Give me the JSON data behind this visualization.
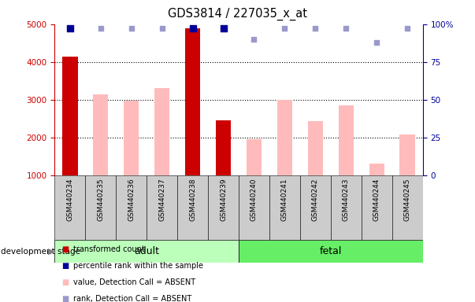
{
  "title": "GDS3814 / 227035_x_at",
  "categories": [
    "GSM440234",
    "GSM440235",
    "GSM440236",
    "GSM440237",
    "GSM440238",
    "GSM440239",
    "GSM440240",
    "GSM440241",
    "GSM440242",
    "GSM440243",
    "GSM440244",
    "GSM440245"
  ],
  "transformed_count": [
    4150,
    null,
    null,
    null,
    4900,
    2450,
    null,
    null,
    null,
    null,
    null,
    null
  ],
  "absent_value": [
    null,
    3150,
    2980,
    3300,
    null,
    null,
    1950,
    3000,
    2430,
    2850,
    1300,
    2080
  ],
  "percentile_rank_present": [
    97,
    null,
    null,
    null,
    97,
    97,
    null,
    null,
    null,
    null,
    null,
    null
  ],
  "percentile_rank_absent": [
    null,
    97,
    97,
    97,
    null,
    null,
    90,
    97,
    97,
    97,
    88,
    97
  ],
  "ylim_left": [
    1000,
    5000
  ],
  "ylim_right": [
    0,
    100
  ],
  "yticks_left": [
    1000,
    2000,
    3000,
    4000,
    5000
  ],
  "yticks_right": [
    0,
    25,
    50,
    75,
    100
  ],
  "ytick_right_labels": [
    "0",
    "25",
    "50",
    "75",
    "100%"
  ],
  "color_darkred": "#cc0000",
  "color_lightpink": "#ffbbbb",
  "color_darkblue": "#000099",
  "color_lightblue": "#9999cc",
  "color_adult_bg": "#bbffbb",
  "color_fetal_bg": "#66ee66",
  "color_xticklabel_bg": "#cccccc",
  "bar_width": 0.5,
  "dot_size_present": 40,
  "dot_size_absent": 25,
  "legend_items": [
    [
      "#cc0000",
      "transformed count"
    ],
    [
      "#000099",
      "percentile rank within the sample"
    ],
    [
      "#ffbbbb",
      "value, Detection Call = ABSENT"
    ],
    [
      "#9999cc",
      "rank, Detection Call = ABSENT"
    ]
  ]
}
